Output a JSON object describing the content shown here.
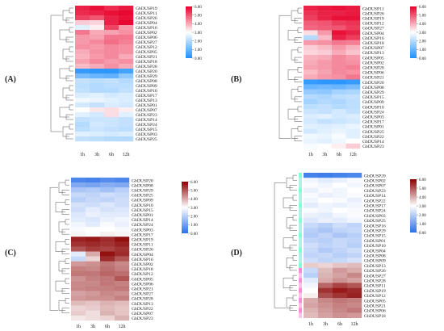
{
  "chart_data": [
    {
      "type": "heatmap",
      "panel_label": "(A)",
      "colormap": "blue-white-red",
      "colors": {
        "low": "#1E90FF",
        "mid": "#FFFFFF",
        "high": "#E8002B"
      },
      "columns": [
        "1h",
        "3h",
        "6h",
        "12h"
      ],
      "rows": [
        "GbDUSP19",
        "GbDUSP11",
        "GbDUSP26",
        "GbDUSP04",
        "GbDUSP16",
        "GbDUSP02",
        "GbDUSP06",
        "GbDUSP27",
        "GbDUSP12",
        "GbDUSP05",
        "GbDUSP21",
        "GbDUSP18",
        "GbDUSP28",
        "GbDUSP20",
        "GbDUSP29",
        "GbDUSP08",
        "GbDUSP09",
        "GbDUSP10",
        "GbDUSP17",
        "GbDUSP13",
        "GbDUSP01",
        "GbDUSP07",
        "GbDUSP23",
        "GbDUSP14",
        "GbDUSP24",
        "GbDUSP15",
        "GbDUSP03",
        "GbDUSP25"
      ],
      "values": [
        [
          5.6,
          5.8,
          5.5,
          5.7
        ],
        [
          5.5,
          5.6,
          5.8,
          5.9
        ],
        [
          5.2,
          5.0,
          5.6,
          5.8
        ],
        [
          3.6,
          3.5,
          5.6,
          5.9
        ],
        [
          2.6,
          3.2,
          5.2,
          4.2
        ],
        [
          4.6,
          4.0,
          4.1,
          4.3
        ],
        [
          4.2,
          4.1,
          4.6,
          4.6
        ],
        [
          4.2,
          4.4,
          4.7,
          4.5
        ],
        [
          4.3,
          4.2,
          4.4,
          4.3
        ],
        [
          4.0,
          4.3,
          4.4,
          4.3
        ],
        [
          3.9,
          4.2,
          4.4,
          4.0
        ],
        [
          4.1,
          4.4,
          4.2,
          4.3
        ],
        [
          3.8,
          4.0,
          4.3,
          4.0
        ],
        [
          0.3,
          0.2,
          0.2,
          0.5
        ],
        [
          1.2,
          1.0,
          0.9,
          1.5
        ],
        [
          2.2,
          2.1,
          2.2,
          2.0
        ],
        [
          2.1,
          2.0,
          2.1,
          2.1
        ],
        [
          2.2,
          2.0,
          2.0,
          2.2
        ],
        [
          2.5,
          2.6,
          2.4,
          2.5
        ],
        [
          2.8,
          2.7,
          2.6,
          2.5
        ],
        [
          2.4,
          2.2,
          2.5,
          2.4
        ],
        [
          3.0,
          3.3,
          3.4,
          3.2
        ],
        [
          2.6,
          2.4,
          3.4,
          2.6
        ],
        [
          2.2,
          2.3,
          2.3,
          2.2
        ],
        [
          2.0,
          2.4,
          2.3,
          2.2
        ],
        [
          2.1,
          2.3,
          2.2,
          2.1
        ],
        [
          2.6,
          2.5,
          2.4,
          2.5
        ],
        [
          2.2,
          2.1,
          2.0,
          2.0
        ]
      ],
      "colorbar": {
        "min": 0,
        "max": 6,
        "ticks": [
          "6.00",
          "5.00",
          "4.00",
          "3.00",
          "2.00",
          "1.00",
          "0.00"
        ]
      }
    },
    {
      "type": "heatmap",
      "panel_label": "(B)",
      "colormap": "blue-white-red",
      "colors": {
        "low": "#1E90FF",
        "mid": "#FFFFFF",
        "high": "#E8002B"
      },
      "columns": [
        "1h",
        "3h",
        "6h",
        "12h"
      ],
      "rows": [
        "GbDUSP11",
        "GbDUSP26",
        "GbDUSP19",
        "GbDUSP12",
        "GbDUSP27",
        "GbDUSP04",
        "GbDUSP16",
        "GbDUSP18",
        "GbDUSP07",
        "GbDUSP13",
        "GbDUSP05",
        "GbDUSP02",
        "GbDUSP28",
        "GbDUSP06",
        "GbDUSP21",
        "GbDUSP20",
        "GbDUSP08",
        "GbDUSP29",
        "GbDUSP15",
        "GbDUSP09",
        "GbDUSP10",
        "GbDUSP24",
        "GbDUSP03",
        "GbDUSP17",
        "GbDUSP01",
        "GbDUSP25",
        "GbDUSP22",
        "GbDUSP14",
        "GbDUSP23"
      ],
      "values": [
        [
          5.6,
          5.7,
          5.8,
          5.7
        ],
        [
          5.4,
          5.6,
          5.6,
          5.7
        ],
        [
          5.3,
          5.6,
          5.8,
          5.8
        ],
        [
          4.9,
          5.0,
          5.3,
          5.4
        ],
        [
          4.8,
          4.9,
          5.0,
          5.3
        ],
        [
          3.4,
          4.2,
          5.8,
          5.6
        ],
        [
          2.0,
          3.8,
          5.6,
          5.3
        ],
        [
          4.2,
          4.3,
          4.6,
          4.5
        ],
        [
          3.6,
          3.8,
          4.2,
          3.9
        ],
        [
          3.5,
          3.6,
          4.0,
          3.7
        ],
        [
          3.9,
          4.0,
          4.4,
          4.2
        ],
        [
          4.0,
          4.2,
          4.4,
          4.3
        ],
        [
          4.1,
          4.2,
          4.4,
          4.5
        ],
        [
          3.8,
          4.1,
          4.4,
          4.3
        ],
        [
          4.0,
          4.2,
          4.3,
          4.6
        ],
        [
          0.3,
          0.2,
          0.2,
          0.3
        ],
        [
          1.0,
          1.1,
          1.0,
          1.2
        ],
        [
          1.6,
          1.5,
          1.8,
          1.9
        ],
        [
          2.0,
          1.9,
          2.1,
          2.2
        ],
        [
          1.8,
          2.0,
          1.9,
          2.1
        ],
        [
          2.1,
          2.2,
          2.0,
          2.1
        ],
        [
          2.3,
          2.2,
          2.4,
          2.2
        ],
        [
          2.5,
          2.6,
          2.4,
          2.5
        ],
        [
          2.4,
          2.2,
          2.3,
          2.4
        ],
        [
          2.6,
          2.5,
          2.6,
          2.7
        ],
        [
          2.4,
          2.6,
          2.7,
          2.6
        ],
        [
          2.8,
          2.7,
          2.9,
          2.6
        ],
        [
          2.7,
          2.6,
          2.8,
          3.0
        ],
        [
          2.9,
          3.0,
          3.2,
          3.6
        ]
      ],
      "colorbar": {
        "min": 0,
        "max": 6,
        "ticks": [
          "6.00",
          "5.00",
          "4.00",
          "3.00",
          "2.00",
          "1.00",
          "0.00"
        ]
      }
    },
    {
      "type": "heatmap",
      "panel_label": "(C)",
      "colormap": "blue-white-darkred",
      "colors": {
        "low": "#2B6FE8",
        "mid": "#FFFFFF",
        "high": "#8B0000"
      },
      "columns": [
        "1h",
        "3h",
        "6h",
        "12h"
      ],
      "rows": [
        "GbDUSP20",
        "GbDUSP08",
        "GbDUSP29",
        "GbDUSP25",
        "GbDUSP09",
        "GbDUSP10",
        "GbDUSP15",
        "GbDUSP01",
        "GbDUSP14",
        "GbDUSP24",
        "GbDUSP03",
        "GbDUSP17",
        "GbDUSP19",
        "GbDUSP11",
        "GbDUSP26",
        "GbDUSP04",
        "GbDUSP16",
        "GbDUSP02",
        "GbDUSP18",
        "GbDUSP12",
        "GbDUSP05",
        "GbDUSP06",
        "GbDUSP21",
        "GbDUSP27",
        "GbDUSP28",
        "GbDUSP13",
        "GbDUSP22",
        "GbDUSP07",
        "GbDUSP23"
      ],
      "values": [
        [
          0.5,
          0.4,
          0.6,
          0.5
        ],
        [
          1.2,
          1.1,
          1.3,
          1.2
        ],
        [
          1.8,
          1.9,
          1.7,
          2.0
        ],
        [
          2.2,
          2.1,
          2.3,
          2.2
        ],
        [
          2.0,
          2.2,
          2.1,
          2.3
        ],
        [
          2.4,
          2.3,
          2.5,
          2.3
        ],
        [
          2.3,
          2.6,
          2.4,
          2.5
        ],
        [
          2.5,
          2.7,
          2.6,
          2.6
        ],
        [
          2.6,
          2.5,
          2.7,
          2.8
        ],
        [
          2.8,
          2.6,
          2.9,
          2.7
        ],
        [
          2.9,
          3.0,
          3.0,
          2.9
        ],
        [
          3.1,
          3.0,
          3.2,
          3.1
        ],
        [
          5.6,
          5.7,
          5.5,
          5.8
        ],
        [
          5.4,
          5.5,
          5.4,
          5.6
        ],
        [
          5.0,
          5.3,
          5.2,
          5.4
        ],
        [
          2.6,
          4.0,
          5.8,
          5.5
        ],
        [
          2.2,
          3.5,
          5.5,
          5.0
        ],
        [
          4.2,
          4.3,
          4.6,
          4.4
        ],
        [
          4.5,
          4.4,
          4.7,
          4.5
        ],
        [
          4.6,
          4.6,
          4.8,
          4.7
        ],
        [
          4.3,
          4.5,
          4.6,
          5.0
        ],
        [
          4.4,
          4.4,
          4.6,
          4.5
        ],
        [
          4.4,
          4.5,
          4.5,
          4.6
        ],
        [
          4.1,
          4.2,
          4.4,
          4.3
        ],
        [
          4.2,
          4.3,
          4.3,
          4.5
        ],
        [
          3.8,
          3.7,
          3.9,
          3.8
        ],
        [
          3.5,
          3.6,
          3.8,
          3.7
        ],
        [
          3.6,
          3.4,
          3.9,
          3.7
        ],
        [
          3.3,
          3.4,
          3.5,
          3.9
        ]
      ],
      "colorbar": {
        "min": 0,
        "max": 6,
        "ticks": [
          "6.00",
          "5.00",
          "4.00",
          "3.00",
          "2.00",
          "1.00",
          "0.00"
        ]
      }
    },
    {
      "type": "heatmap",
      "panel_label": "(D)",
      "colormap": "blue-white-darkred",
      "colors": {
        "low": "#2B6FE8",
        "mid": "#FFFFFF",
        "high": "#8B0000"
      },
      "columns": [
        "1h",
        "3h",
        "6h",
        "12h"
      ],
      "rows": [
        "GbDUSP20",
        "GbDUSP02",
        "GbDUSP07",
        "GbDUSP23",
        "GbDUSP14",
        "GbDUSP22",
        "GbDUSP17",
        "GbDUSP24",
        "GbDUSP03",
        "GbDUSP25",
        "GbDUSP16",
        "GbDUSP29",
        "GbDUSP15",
        "GbDUSP01",
        "GbDUSP10",
        "GbDUSP04",
        "GbDUSP08",
        "GbDUSP09",
        "GbDUSP13",
        "GbDUSP26",
        "GbDUSP27",
        "GbDUSP28",
        "GbDUSP11",
        "GbDUSP19",
        "GbDUSP12",
        "GbDUSP05",
        "GbDUSP21",
        "GbDUSP06",
        "GbDUSP18"
      ],
      "values": [
        [
          0.4,
          0.3,
          0.4,
          0.5
        ],
        [
          2.8,
          2.6,
          2.7,
          2.9
        ],
        [
          2.9,
          2.8,
          3.0,
          2.8
        ],
        [
          2.7,
          2.9,
          2.8,
          3.0
        ],
        [
          2.9,
          2.7,
          2.8,
          2.9
        ],
        [
          2.8,
          3.0,
          2.9,
          2.7
        ],
        [
          2.6,
          2.8,
          2.7,
          2.8
        ],
        [
          2.9,
          2.8,
          3.0,
          2.9
        ],
        [
          2.7,
          2.6,
          2.8,
          2.9
        ],
        [
          2.5,
          2.7,
          2.6,
          2.8
        ],
        [
          2.2,
          2.0,
          2.3,
          2.1
        ],
        [
          2.0,
          1.8,
          2.1,
          2.2
        ],
        [
          1.9,
          2.1,
          1.8,
          2.0
        ],
        [
          2.1,
          2.0,
          2.2,
          2.1
        ],
        [
          2.3,
          2.1,
          2.2,
          2.0
        ],
        [
          2.2,
          1.9,
          2.1,
          2.3
        ],
        [
          2.1,
          2.2,
          2.0,
          2.1
        ],
        [
          2.3,
          2.1,
          2.2,
          2.4
        ],
        [
          3.6,
          3.5,
          3.7,
          3.8
        ],
        [
          2.2,
          3.8,
          4.2,
          4.0
        ],
        [
          2.0,
          3.9,
          4.1,
          4.4
        ],
        [
          2.6,
          4.0,
          4.3,
          4.1
        ],
        [
          2.8,
          4.8,
          5.2,
          5.0
        ],
        [
          3.0,
          5.4,
          5.7,
          5.5
        ],
        [
          3.2,
          5.1,
          5.4,
          5.6
        ],
        [
          4.0,
          4.4,
          4.6,
          4.5
        ],
        [
          4.1,
          4.3,
          4.5,
          4.4
        ],
        [
          3.9,
          4.2,
          4.4,
          4.6
        ],
        [
          3.8,
          4.1,
          4.3,
          4.2
        ]
      ],
      "colorbar": {
        "min": 0,
        "max": 6,
        "ticks": [
          "6.00",
          "5.00",
          "4.00",
          "3.00",
          "2.00",
          "1.00",
          "0.00"
        ]
      }
    }
  ]
}
